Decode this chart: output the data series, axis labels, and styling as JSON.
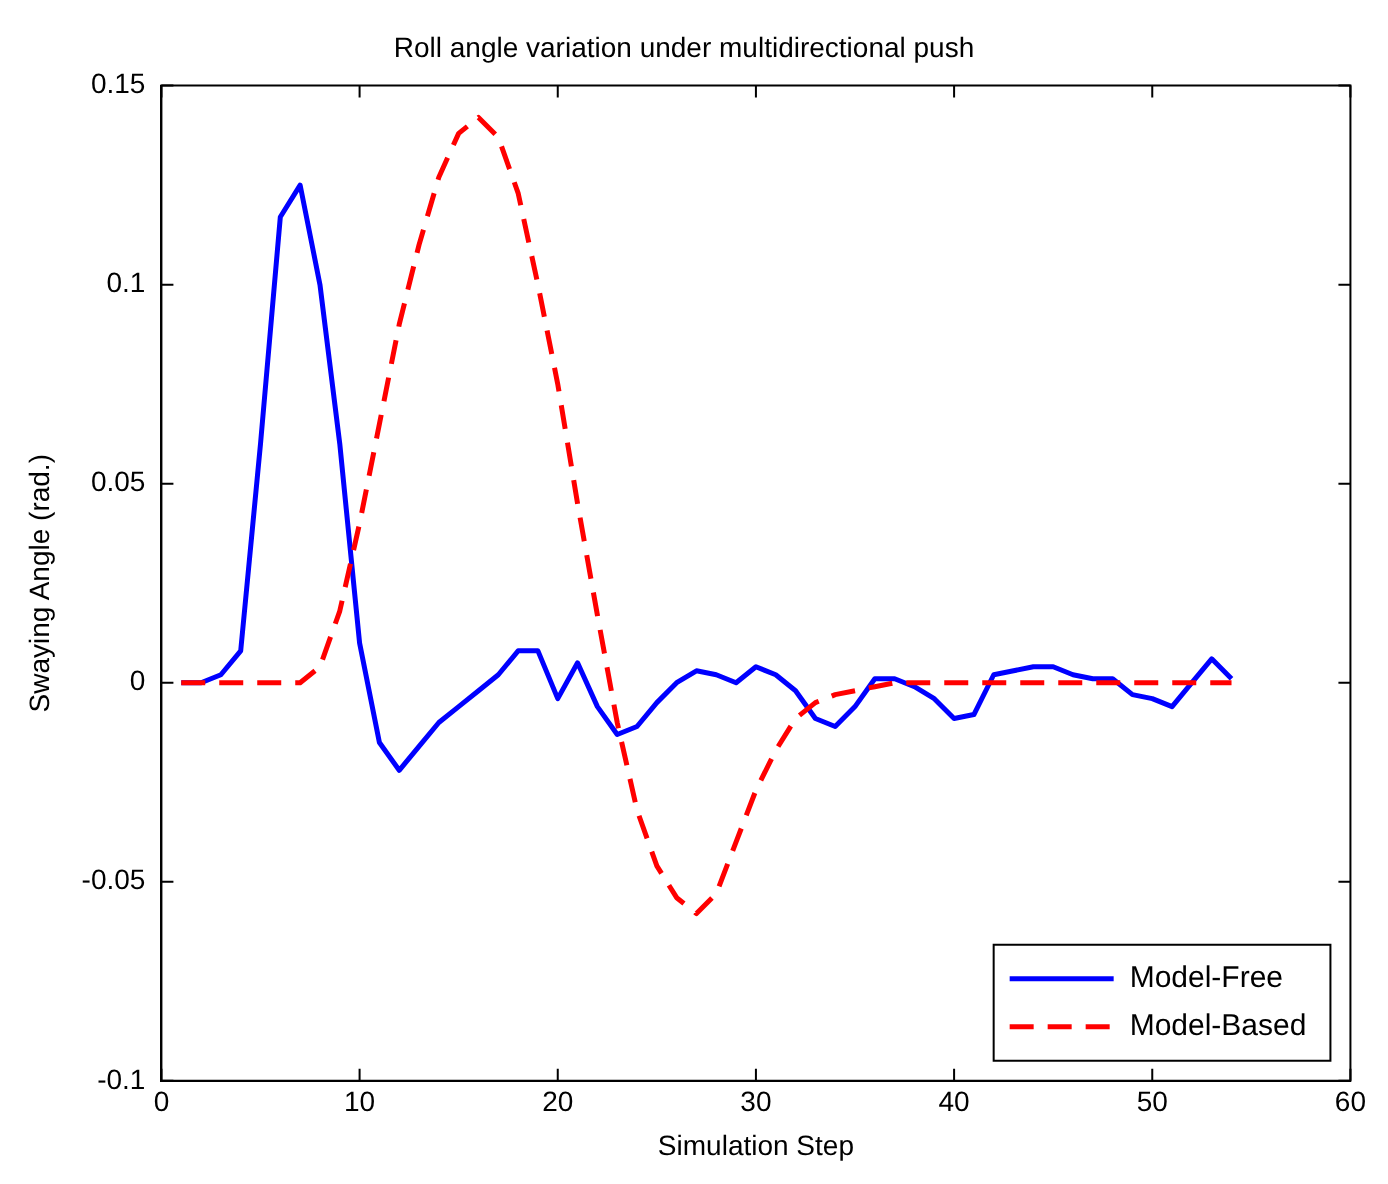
{
  "chart_data": {
    "type": "line",
    "title": "Roll angle variation under multidirectional push",
    "xlabel": "Simulation Step",
    "ylabel": "Swaying Angle (rad.)",
    "x": [
      1,
      2,
      3,
      4,
      5,
      6,
      7,
      8,
      9,
      10,
      11,
      12,
      13,
      14,
      15,
      16,
      17,
      18,
      19,
      20,
      21,
      22,
      23,
      24,
      25,
      26,
      27,
      28,
      29,
      30,
      31,
      32,
      33,
      34,
      35,
      36,
      37,
      38,
      39,
      40,
      41,
      42,
      43,
      44,
      45,
      46,
      47,
      48,
      49,
      50,
      51,
      52,
      53,
      54
    ],
    "series": [
      {
        "name": "Model-Free",
        "color": "#0000ff",
        "line_style": "solid",
        "values": [
          0,
          0,
          0.002,
          0.008,
          0.06,
          0.117,
          0.125,
          0.1,
          0.06,
          0.01,
          -0.015,
          -0.022,
          -0.016,
          -0.01,
          -0.006,
          -0.002,
          0.002,
          0.008,
          0.008,
          -0.004,
          0.005,
          -0.006,
          -0.013,
          -0.011,
          -0.005,
          0,
          0.003,
          0.002,
          0,
          0.004,
          0.002,
          -0.002,
          -0.009,
          -0.011,
          -0.006,
          0.001,
          0.001,
          -0.001,
          -0.004,
          -0.009,
          -0.008,
          0.002,
          0.003,
          0.004,
          0.004,
          0.002,
          0.001,
          0.001,
          -0.003,
          -0.004,
          -0.006,
          0,
          0.006,
          0.001
        ]
      },
      {
        "name": "Model-Based",
        "color": "#ff0000",
        "line_style": "dashed",
        "values": [
          0,
          0,
          0,
          0,
          0,
          0,
          0,
          0.004,
          0.018,
          0.04,
          0.065,
          0.09,
          0.11,
          0.127,
          0.138,
          0.142,
          0.137,
          0.123,
          0.1,
          0.075,
          0.045,
          0.017,
          -0.01,
          -0.032,
          -0.046,
          -0.054,
          -0.058,
          -0.053,
          -0.04,
          -0.027,
          -0.017,
          -0.009,
          -0.005,
          -0.003,
          -0.002,
          -0.001,
          0,
          0,
          0,
          0,
          0,
          0,
          0,
          0,
          0,
          0,
          0,
          0,
          0,
          0,
          0,
          0,
          0,
          0
        ]
      }
    ],
    "xlim": [
      0,
      60
    ],
    "xticks": [
      0,
      10,
      20,
      30,
      40,
      50,
      60
    ],
    "ylim": [
      -0.1,
      0.15
    ],
    "yticks": [
      -0.1,
      -0.05,
      0,
      0.05,
      0.1,
      0.15
    ],
    "grid": false,
    "legend": "bottom right",
    "marker": "none"
  }
}
